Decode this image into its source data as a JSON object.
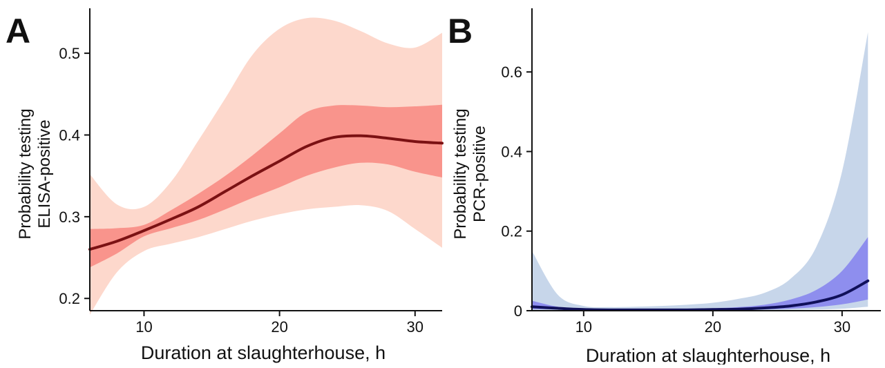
{
  "figure": {
    "panels": [
      "A",
      "B"
    ]
  },
  "chart_data": [
    {
      "panel": "A",
      "type": "line",
      "xlabel": "Duration at slaughterhouse, h",
      "ylabel": [
        "Probability testing",
        "ELISA-positive"
      ],
      "xlim": [
        6,
        32
      ],
      "ylim": [
        0.185,
        0.555
      ],
      "xticks": [
        10,
        20,
        30
      ],
      "yticks": [
        0.2,
        0.3,
        0.4,
        0.5
      ],
      "ytick_labels": [
        "0.2",
        "0.3",
        "0.4",
        "0.5"
      ],
      "grid": false,
      "colors": {
        "line": "#7b1113",
        "inner_band": "#f9948c",
        "outer_band": "#fdd8cc"
      },
      "x": [
        6,
        8,
        10,
        12,
        14,
        16,
        18,
        20,
        22,
        24,
        26,
        28,
        30,
        32
      ],
      "series": [
        {
          "role": "estimate",
          "values": [
            0.26,
            0.27,
            0.283,
            0.297,
            0.312,
            0.331,
            0.35,
            0.368,
            0.386,
            0.397,
            0.399,
            0.396,
            0.392,
            0.39
          ]
        },
        {
          "role": "inner_upper",
          "values": [
            0.285,
            0.286,
            0.29,
            0.308,
            0.328,
            0.35,
            0.375,
            0.402,
            0.428,
            0.436,
            0.436,
            0.434,
            0.435,
            0.437
          ]
        },
        {
          "role": "inner_lower",
          "values": [
            0.238,
            0.255,
            0.276,
            0.286,
            0.296,
            0.309,
            0.323,
            0.336,
            0.35,
            0.36,
            0.366,
            0.364,
            0.355,
            0.348
          ]
        },
        {
          "role": "outer_upper",
          "values": [
            0.352,
            0.315,
            0.312,
            0.343,
            0.393,
            0.445,
            0.498,
            0.53,
            0.543,
            0.54,
            0.527,
            0.512,
            0.507,
            0.525
          ]
        },
        {
          "role": "outer_lower",
          "values": [
            0.18,
            0.232,
            0.258,
            0.267,
            0.275,
            0.285,
            0.295,
            0.303,
            0.309,
            0.312,
            0.314,
            0.307,
            0.285,
            0.262
          ]
        }
      ]
    },
    {
      "panel": "B",
      "type": "line",
      "xlabel": "Duration at slaughterhouse, h",
      "ylabel": [
        "Probability testing",
        "PCR-positive"
      ],
      "xlim": [
        6,
        33
      ],
      "ylim": [
        0,
        0.76
      ],
      "xticks": [
        10,
        20,
        30
      ],
      "yticks": [
        0,
        0.2,
        0.4,
        0.6
      ],
      "ytick_labels": [
        "0",
        "0.2",
        "0.4",
        "0.6"
      ],
      "grid": false,
      "colors": {
        "line": "#10105a",
        "inner_band": "#8e8eee",
        "outer_band": "#c7d6ea"
      },
      "x": [
        6,
        8,
        10,
        12,
        14,
        16,
        18,
        20,
        22,
        24,
        26,
        28,
        30,
        32
      ],
      "series": [
        {
          "role": "estimate",
          "values": [
            0.01,
            0.006,
            0.003,
            0.002,
            0.002,
            0.002,
            0.002,
            0.003,
            0.004,
            0.007,
            0.012,
            0.022,
            0.04,
            0.075
          ]
        },
        {
          "role": "inner_upper",
          "values": [
            0.025,
            0.01,
            0.005,
            0.004,
            0.004,
            0.004,
            0.005,
            0.006,
            0.009,
            0.015,
            0.028,
            0.052,
            0.1,
            0.185
          ]
        },
        {
          "role": "inner_lower",
          "values": [
            0.004,
            0.003,
            0.002,
            0.001,
            0.001,
            0.001,
            0.001,
            0.001,
            0.002,
            0.003,
            0.005,
            0.009,
            0.016,
            0.028
          ]
        },
        {
          "role": "outer_upper",
          "values": [
            0.15,
            0.04,
            0.012,
            0.009,
            0.01,
            0.012,
            0.015,
            0.02,
            0.03,
            0.045,
            0.08,
            0.16,
            0.35,
            0.7
          ]
        },
        {
          "role": "outer_lower",
          "values": [
            0.001,
            0.001,
            0.0005,
            0.0004,
            0.0004,
            0.0004,
            0.0004,
            0.0005,
            0.0006,
            0.001,
            0.002,
            0.003,
            0.005,
            0.01
          ]
        }
      ]
    }
  ]
}
